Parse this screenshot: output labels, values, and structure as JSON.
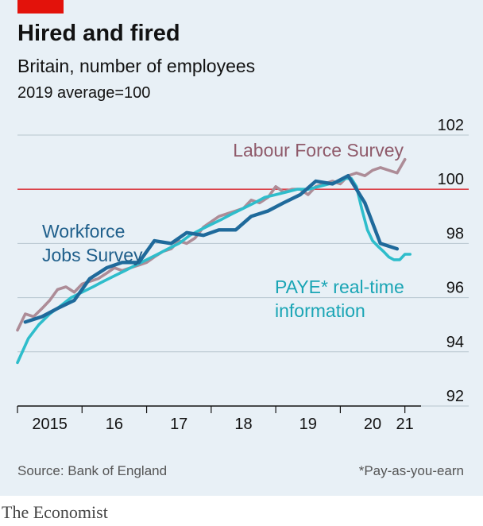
{
  "header": {
    "title": "Hired and fired",
    "subtitle": "Britain, number of employees",
    "unit": "2019 average=100"
  },
  "footer": {
    "source": "Source: Bank of England",
    "footnote": "*Pay-as-you-earn",
    "brand": "The Economist"
  },
  "colors": {
    "background": "#e8f0f6",
    "accent_red": "#e3120b",
    "reference_line": "#db444b",
    "labour_force_survey": "#ad8c97",
    "workforce_jobs_survey": "#1f6a9b",
    "paye_rti": "#2ebdcb",
    "gridline": "#b7c6cf"
  },
  "chart_data": {
    "type": "line",
    "title": "Hired and fired",
    "subtitle": "Britain, number of employees",
    "ylabel": "2019 average=100",
    "xlim": [
      2015.0,
      2021.25
    ],
    "ylim": [
      92,
      102
    ],
    "yticks": [
      92,
      94,
      96,
      98,
      100,
      102
    ],
    "xticks": [
      {
        "label": "2015",
        "x": 2015.5
      },
      {
        "label": "16",
        "x": 2016.5
      },
      {
        "label": "17",
        "x": 2017.5
      },
      {
        "label": "18",
        "x": 2018.5
      },
      {
        "label": "19",
        "x": 2019.5
      },
      {
        "label": "20",
        "x": 2020.5
      },
      {
        "label": "21",
        "x": 2021.0
      }
    ],
    "reference_line": 100,
    "grid": true,
    "series": [
      {
        "name": "Labour Force Survey",
        "color": "#ad8c97",
        "x": [
          2015.0,
          2015.12,
          2015.25,
          2015.38,
          2015.5,
          2015.62,
          2015.75,
          2015.88,
          2016.0,
          2016.12,
          2016.25,
          2016.38,
          2016.5,
          2016.62,
          2016.75,
          2016.88,
          2017.0,
          2017.12,
          2017.25,
          2017.38,
          2017.5,
          2017.62,
          2017.75,
          2017.88,
          2018.0,
          2018.12,
          2018.25,
          2018.38,
          2018.5,
          2018.62,
          2018.75,
          2018.88,
          2019.0,
          2019.12,
          2019.25,
          2019.38,
          2019.5,
          2019.62,
          2019.75,
          2019.88,
          2020.0,
          2020.12,
          2020.25,
          2020.38,
          2020.5,
          2020.62,
          2020.75,
          2020.88,
          2021.0
        ],
        "y": [
          94.8,
          95.4,
          95.3,
          95.6,
          95.9,
          96.3,
          96.4,
          96.2,
          96.5,
          96.6,
          96.7,
          96.9,
          97.1,
          97.0,
          97.1,
          97.2,
          97.3,
          97.5,
          97.7,
          97.8,
          98.1,
          98.0,
          98.2,
          98.6,
          98.8,
          99.0,
          99.1,
          99.2,
          99.3,
          99.6,
          99.5,
          99.7,
          100.1,
          99.9,
          100.0,
          100.0,
          99.8,
          100.1,
          100.2,
          100.3,
          100.2,
          100.5,
          100.6,
          100.5,
          100.7,
          100.8,
          100.7,
          100.6,
          101.1
        ]
      },
      {
        "name": "Workforce Jobs Survey",
        "color": "#1f6a9b",
        "x": [
          2015.12,
          2015.38,
          2015.62,
          2015.88,
          2016.12,
          2016.38,
          2016.62,
          2016.88,
          2017.12,
          2017.38,
          2017.62,
          2017.88,
          2018.12,
          2018.38,
          2018.62,
          2018.88,
          2019.12,
          2019.38,
          2019.62,
          2019.88,
          2020.12,
          2020.38,
          2020.62,
          2020.88
        ],
        "y": [
          95.1,
          95.3,
          95.6,
          95.9,
          96.7,
          97.1,
          97.3,
          97.3,
          98.1,
          98.0,
          98.4,
          98.3,
          98.5,
          98.5,
          99.0,
          99.2,
          99.5,
          99.8,
          100.3,
          100.2,
          100.5,
          99.5,
          98.0,
          97.8
        ]
      },
      {
        "name": "PAYE* real-time information",
        "color": "#2ebdcb",
        "x": [
          2015.0,
          2015.17,
          2015.33,
          2015.5,
          2015.67,
          2015.83,
          2016.0,
          2016.17,
          2016.33,
          2016.5,
          2016.67,
          2016.83,
          2017.0,
          2017.17,
          2017.33,
          2017.5,
          2017.67,
          2017.83,
          2018.0,
          2018.17,
          2018.33,
          2018.5,
          2018.67,
          2018.83,
          2019.0,
          2019.17,
          2019.33,
          2019.5,
          2019.67,
          2019.83,
          2020.0,
          2020.08,
          2020.17,
          2020.25,
          2020.33,
          2020.42,
          2020.5,
          2020.58,
          2020.67,
          2020.75,
          2020.83,
          2020.92,
          2021.0,
          2021.08
        ],
        "y": [
          93.6,
          94.5,
          95.0,
          95.4,
          95.7,
          96.0,
          96.2,
          96.4,
          96.6,
          96.8,
          97.0,
          97.2,
          97.4,
          97.6,
          97.8,
          98.0,
          98.3,
          98.5,
          98.7,
          98.9,
          99.1,
          99.3,
          99.5,
          99.7,
          99.8,
          99.9,
          100.0,
          100.0,
          100.1,
          100.2,
          100.3,
          100.4,
          100.4,
          100.1,
          99.3,
          98.5,
          98.1,
          97.9,
          97.7,
          97.5,
          97.4,
          97.4,
          97.6,
          97.6
        ]
      }
    ],
    "annotations": [
      {
        "series": "Labour Force Survey",
        "lines": [
          "Labour Force Survey"
        ]
      },
      {
        "series": "Workforce Jobs Survey",
        "lines": [
          "Workforce",
          "Jobs Survey"
        ]
      },
      {
        "series": "PAYE* real-time information",
        "lines": [
          "PAYE* real-time",
          "information"
        ]
      }
    ]
  }
}
